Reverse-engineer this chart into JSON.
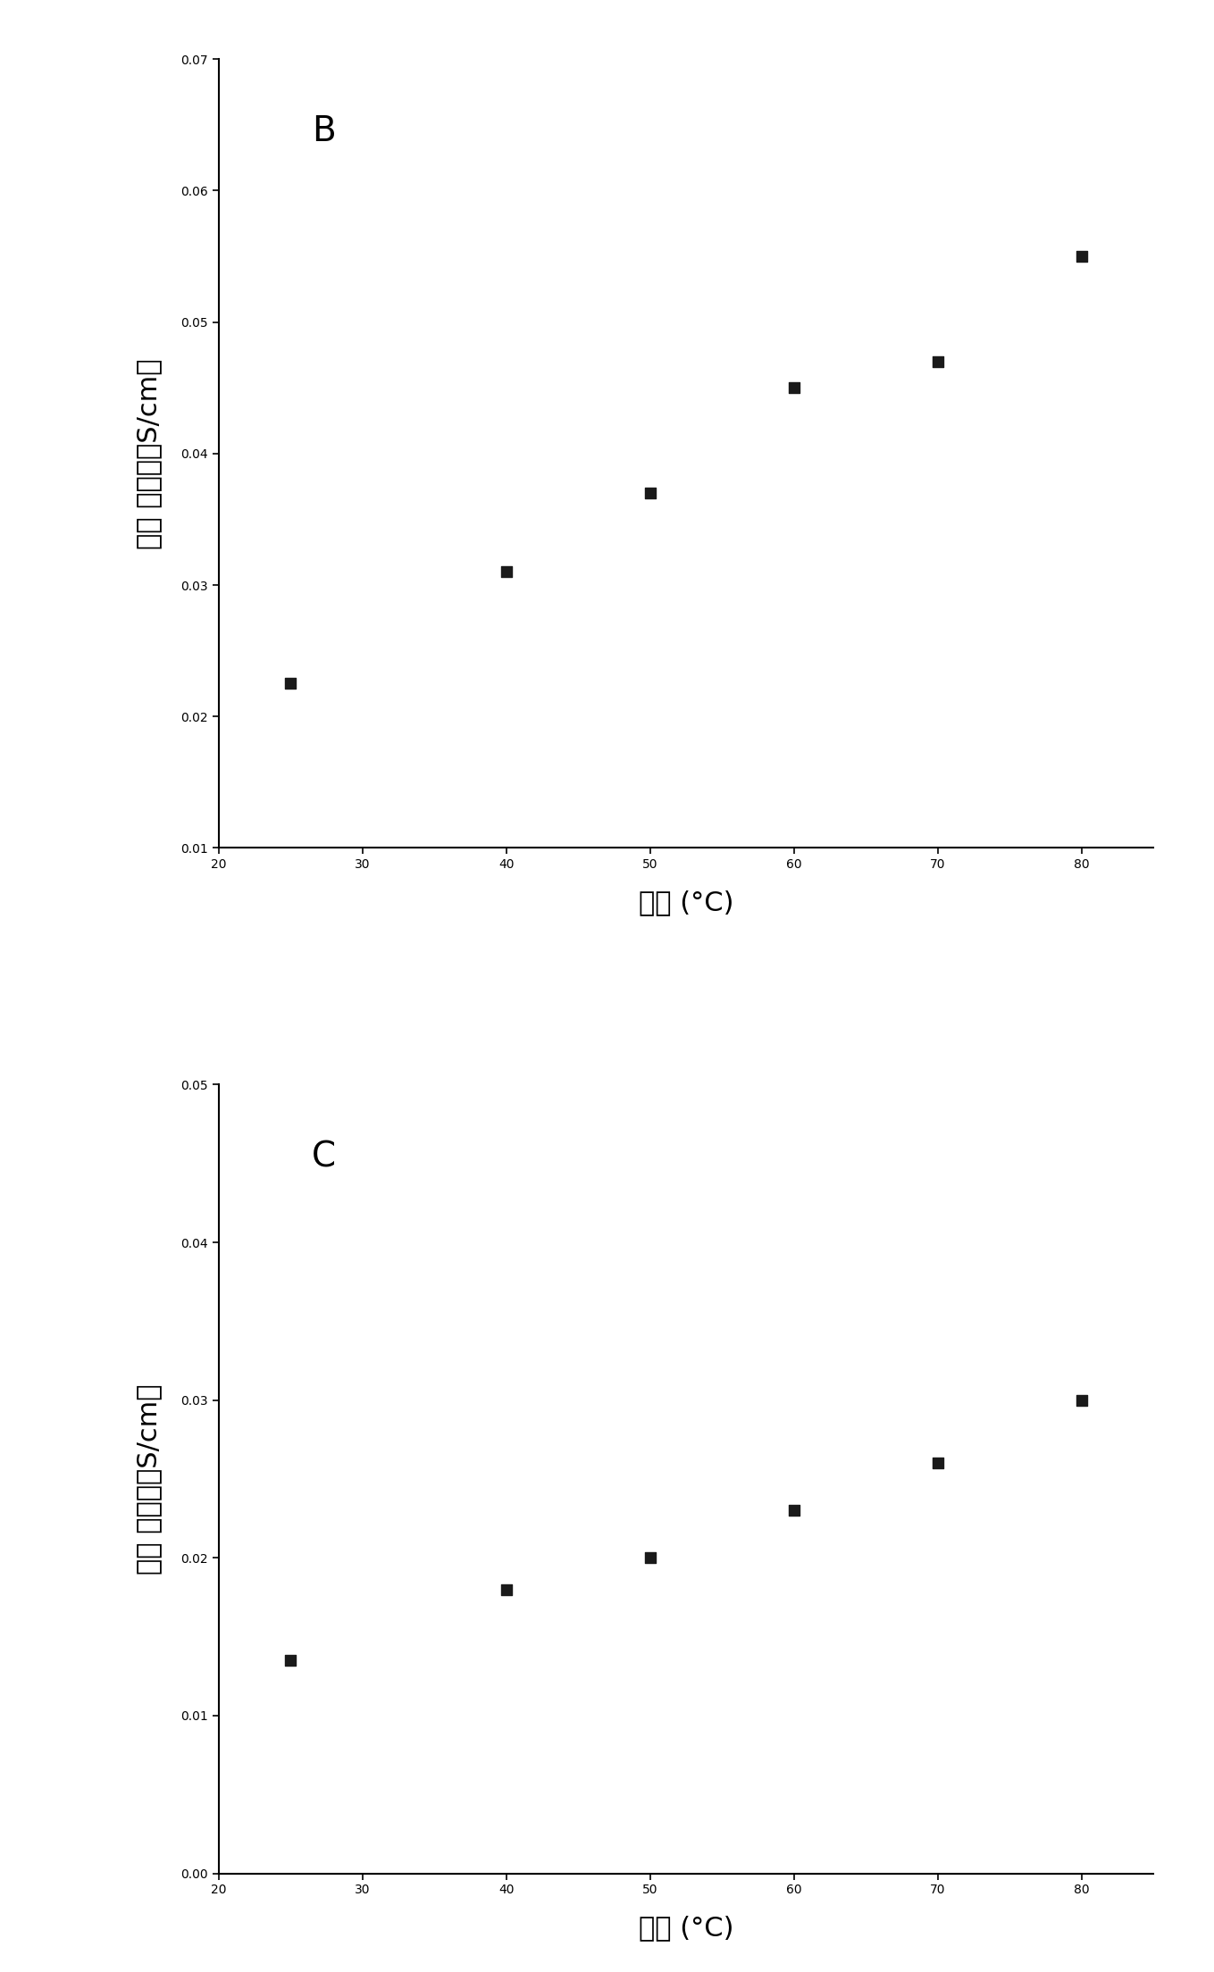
{
  "panel_B": {
    "label": "B",
    "x": [
      25,
      40,
      50,
      60,
      70,
      80
    ],
    "y": [
      0.0225,
      0.031,
      0.037,
      0.045,
      0.047,
      0.055
    ],
    "xlim": [
      20,
      85
    ],
    "ylim": [
      0.01,
      0.07
    ],
    "yticks": [
      0.01,
      0.02,
      0.03,
      0.04,
      0.05,
      0.06,
      0.07
    ],
    "xticks": [
      20,
      30,
      40,
      50,
      60,
      70,
      80
    ],
    "xlabel": "温度 (°C)",
    "ylabel": "离子 传导率（S/cm）"
  },
  "panel_C": {
    "label": "C",
    "x": [
      25,
      40,
      50,
      60,
      70,
      80
    ],
    "y": [
      0.0135,
      0.018,
      0.02,
      0.023,
      0.026,
      0.03
    ],
    "xlim": [
      20,
      85
    ],
    "ylim": [
      0.0,
      0.05
    ],
    "yticks": [
      0.0,
      0.01,
      0.02,
      0.03,
      0.04,
      0.05
    ],
    "xticks": [
      20,
      30,
      40,
      50,
      60,
      70,
      80
    ],
    "xlabel": "温度 (°C)",
    "ylabel": "离子 传导率（S/cm）"
  },
  "marker": "s",
  "marker_size": 80,
  "marker_color": "#1a1a1a",
  "tick_fontsize": 18,
  "axis_label_fontsize": 22,
  "panel_label_fontsize": 28,
  "background_color": "#ffffff",
  "spine_color": "#000000"
}
